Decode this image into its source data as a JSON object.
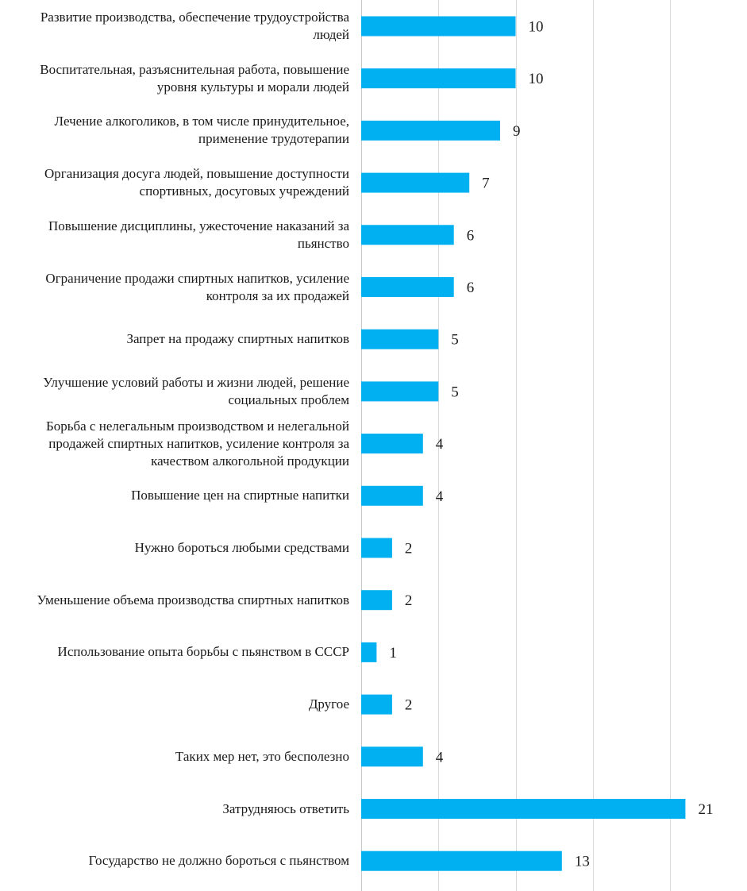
{
  "chart_data": {
    "type": "bar",
    "orientation": "horizontal",
    "title": "",
    "xlabel": "",
    "ylabel": "",
    "xlim": [
      0,
      25
    ],
    "grid": true,
    "bar_color": "#00B0F0",
    "categories": [
      "Развитие производства, обеспечение трудоустройства людей",
      "Воспитательная, разъяснительная работа, повышение уровня культуры и морали людей",
      "Лечение алкоголиков, в том числе принудительное, применение трудотерапии",
      "Организация досуга людей, повышение доступности спортивных, досуговых учреждений",
      "Повышение дисциплины, ужесточение наказаний за пьянство",
      "Ограничение продажи спиртных напитков, усиление контроля за их продажей",
      "Запрет на продажу спиртных напитков",
      "Улучшение условий работы и жизни людей, решение социальных проблем",
      "Борьба с нелегальным производством и нелегальной продажей спиртных напитков, усиление контроля за качеством алкогольной продукции",
      "Повышение цен на спиртные напитки",
      "Нужно бороться любыми средствами",
      "Уменьшение объема производства спиртных напитков",
      "Использование опыта борьбы с пьянством в СССР",
      "Другое",
      "Таких мер нет, это бесполезно",
      "Затрудняюсь ответить",
      "Государство не должно бороться с пьянством"
    ],
    "values": [
      10,
      10,
      9,
      7,
      6,
      6,
      5,
      5,
      4,
      4,
      2,
      2,
      1,
      2,
      4,
      21,
      13
    ],
    "label_lines": [
      [
        "Развитие производства, обеспечение трудоустройства",
        "людей"
      ],
      [
        "Воспитательная, разъяснительная работа, повышение",
        "уровня культуры и морали людей"
      ],
      [
        "Лечение алкоголиков, в том числе принудительное,",
        "применение трудотерапии"
      ],
      [
        "Организация досуга людей, повышение доступности",
        "спортивных, досуговых учреждений"
      ],
      [
        "Повышение дисциплины, ужесточение наказаний за",
        "пьянство"
      ],
      [
        "Ограничение продажи спиртных напитков, усиление",
        "контроля за их продажей"
      ],
      [
        "Запрет на продажу спиртных напитков"
      ],
      [
        "Улучшение условий работы и жизни людей, решение",
        "социальных проблем"
      ],
      [
        "Борьба с нелегальным производством и нелегальной",
        "продажей спиртных напитков, усиление контроля за",
        "качеством алкогольной продукции"
      ],
      [
        "Повышение цен на спиртные напитки"
      ],
      [
        "Нужно бороться любыми средствами"
      ],
      [
        "Уменьшение объема производства спиртных напитков"
      ],
      [
        "Использование опыта борьбы с пьянством в СССР"
      ],
      [
        "Другое"
      ],
      [
        "Таких мер нет, это бесполезно"
      ],
      [
        "Затрудняюсь ответить"
      ],
      [
        "Государство не должно бороться с пьянством"
      ]
    ]
  }
}
